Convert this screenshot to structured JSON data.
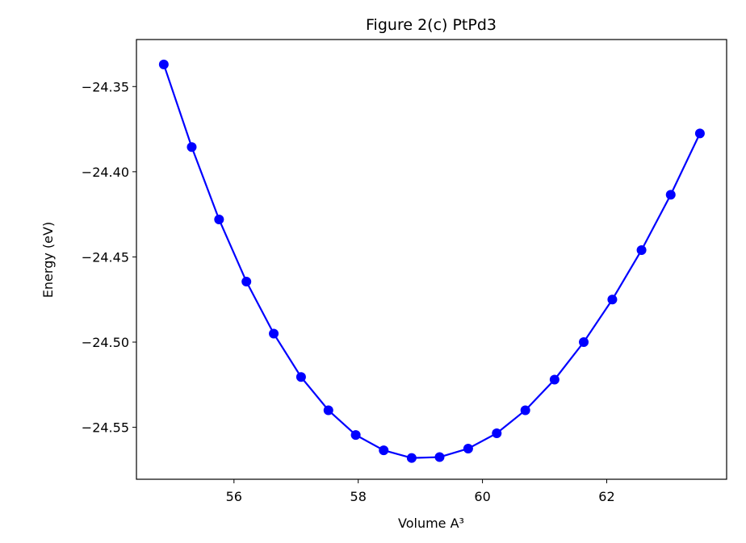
{
  "chart_data": {
    "type": "line",
    "title": "Figure 2(c) PtPd3",
    "xlabel": "Volume A³",
    "ylabel": "Energy (eV)",
    "xlim": [
      54.43,
      63.93
    ],
    "ylim": [
      -24.5805,
      -24.3224
    ],
    "x_ticks": [
      56,
      58,
      60,
      62
    ],
    "y_ticks": [
      -24.35,
      -24.4,
      -24.45,
      -24.5,
      -24.55
    ],
    "x_tick_labels": [
      "56",
      "58",
      "60",
      "62"
    ],
    "y_tick_labels": [
      "−24.35",
      "−24.40",
      "−24.45",
      "−24.50",
      "−24.55"
    ],
    "grid": false,
    "series": [
      {
        "color": "#0000ff",
        "marker": "circle",
        "x": [
          54.87,
          55.32,
          55.76,
          56.2,
          56.64,
          57.08,
          57.52,
          57.96,
          58.41,
          58.86,
          59.31,
          59.77,
          60.23,
          60.69,
          61.16,
          61.63,
          62.09,
          62.56,
          63.03,
          63.5
        ],
        "y": [
          -24.337,
          -24.3855,
          -24.428,
          -24.4645,
          -24.495,
          -24.5205,
          -24.54,
          -24.5545,
          -24.5635,
          -24.568,
          -24.5675,
          -24.5625,
          -24.5535,
          -24.54,
          -24.522,
          -24.5,
          -24.475,
          -24.446,
          -24.4135,
          -24.3775
        ]
      }
    ]
  }
}
